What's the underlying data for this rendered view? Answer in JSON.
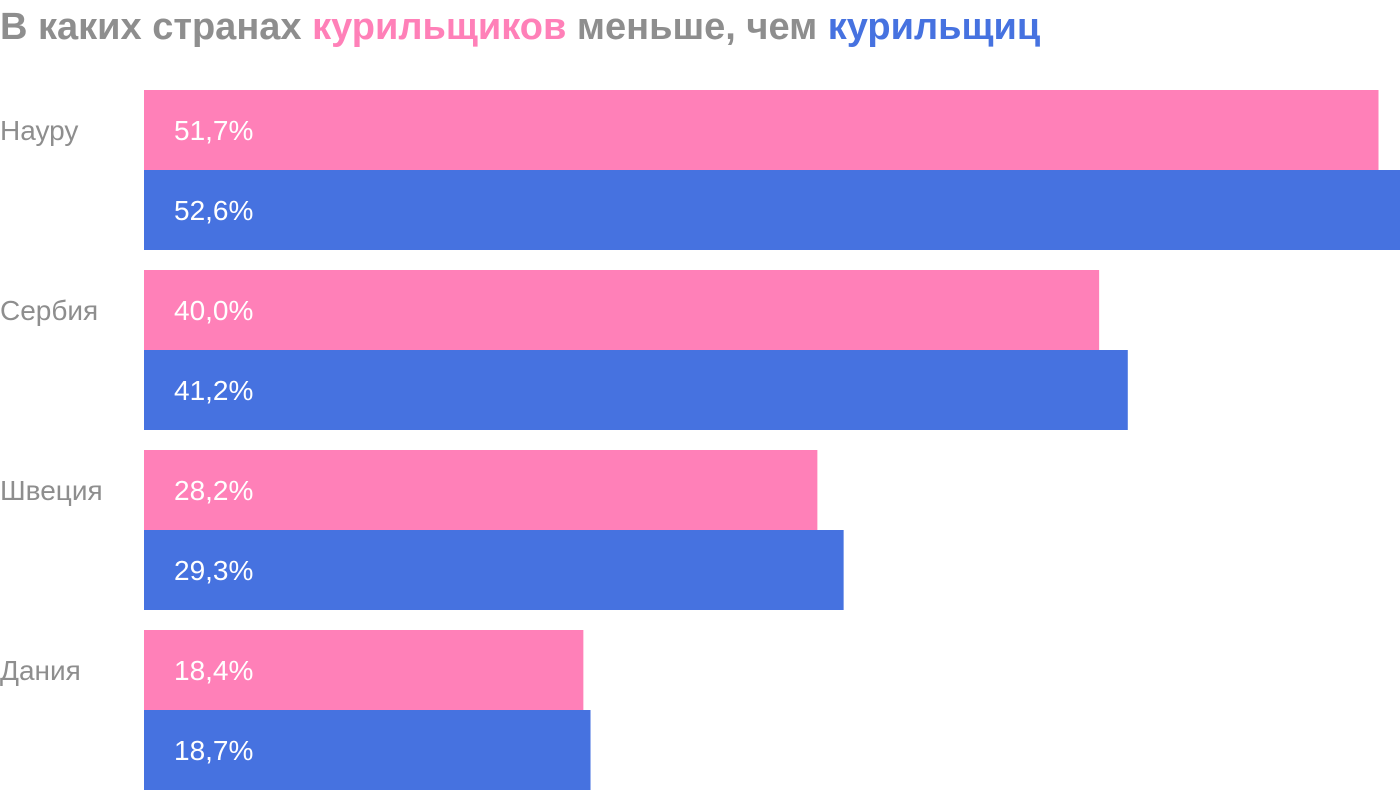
{
  "title": {
    "part1": "В каких странах ",
    "part2": "курильщиков",
    "part3": " меньше, чем ",
    "part4": "курильщиц"
  },
  "colors": {
    "men": "#ff80b8",
    "women": "#4672e0",
    "title_gray": "#8e8e8e",
    "category_text": "#8e8e8e",
    "bar_text": "#ffffff"
  },
  "chart_data": {
    "type": "bar",
    "orientation": "horizontal",
    "categories": [
      "Науру",
      "Сербия",
      "Швеция",
      "Дания"
    ],
    "series": [
      {
        "values": [
          51.7,
          40.0,
          28.2,
          18.4
        ],
        "labels": [
          "51,7%",
          "40,0%",
          "28,2%",
          "18,4%"
        ],
        "color": "#ff80b8"
      },
      {
        "values": [
          52.6,
          41.2,
          29.3,
          18.7
        ],
        "labels": [
          "52,6%",
          "41,2%",
          "29,3%",
          "18,7%"
        ],
        "color": "#4672e0"
      }
    ],
    "xlim": [
      0,
      52.6
    ],
    "grid": false,
    "legend": "none"
  }
}
